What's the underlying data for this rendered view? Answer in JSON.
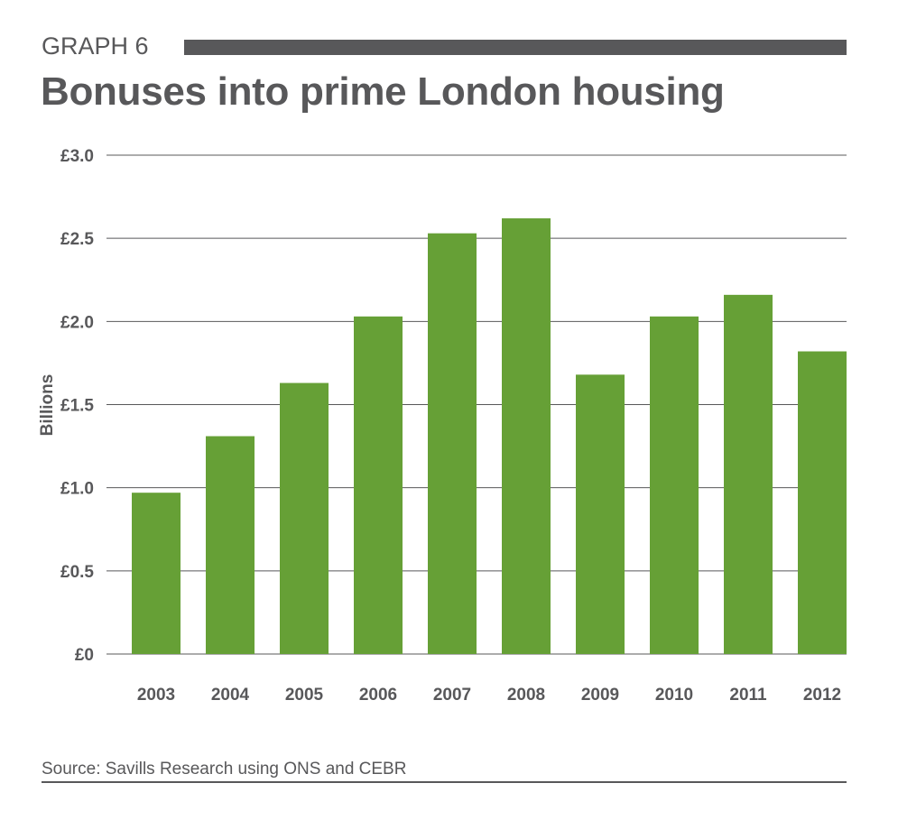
{
  "header": {
    "kicker": "GRAPH 6",
    "title": "Bonuses into prime London housing"
  },
  "footer": {
    "source": "Source: Savills Research using ONS and CEBR"
  },
  "colors": {
    "bar": "#66a036",
    "text": "#58585a",
    "grid": "#58585a"
  },
  "chart_data": {
    "type": "bar",
    "title": "Bonuses into prime London housing",
    "xlabel": "",
    "ylabel": "Billions",
    "ylim": [
      0,
      3.0
    ],
    "yticks": [
      0,
      0.5,
      1.0,
      1.5,
      2.0,
      2.5,
      3.0
    ],
    "ytick_labels": [
      "£0",
      "£0.5",
      "£1.0",
      "£1.5",
      "£2.0",
      "£2.5",
      "£3.0"
    ],
    "grid": true,
    "categories": [
      "2003",
      "2004",
      "2005",
      "2006",
      "2007",
      "2008",
      "2009",
      "2010",
      "2011",
      "2012"
    ],
    "values": [
      0.97,
      1.31,
      1.63,
      2.03,
      2.53,
      2.62,
      1.68,
      2.03,
      2.16,
      1.82
    ]
  }
}
